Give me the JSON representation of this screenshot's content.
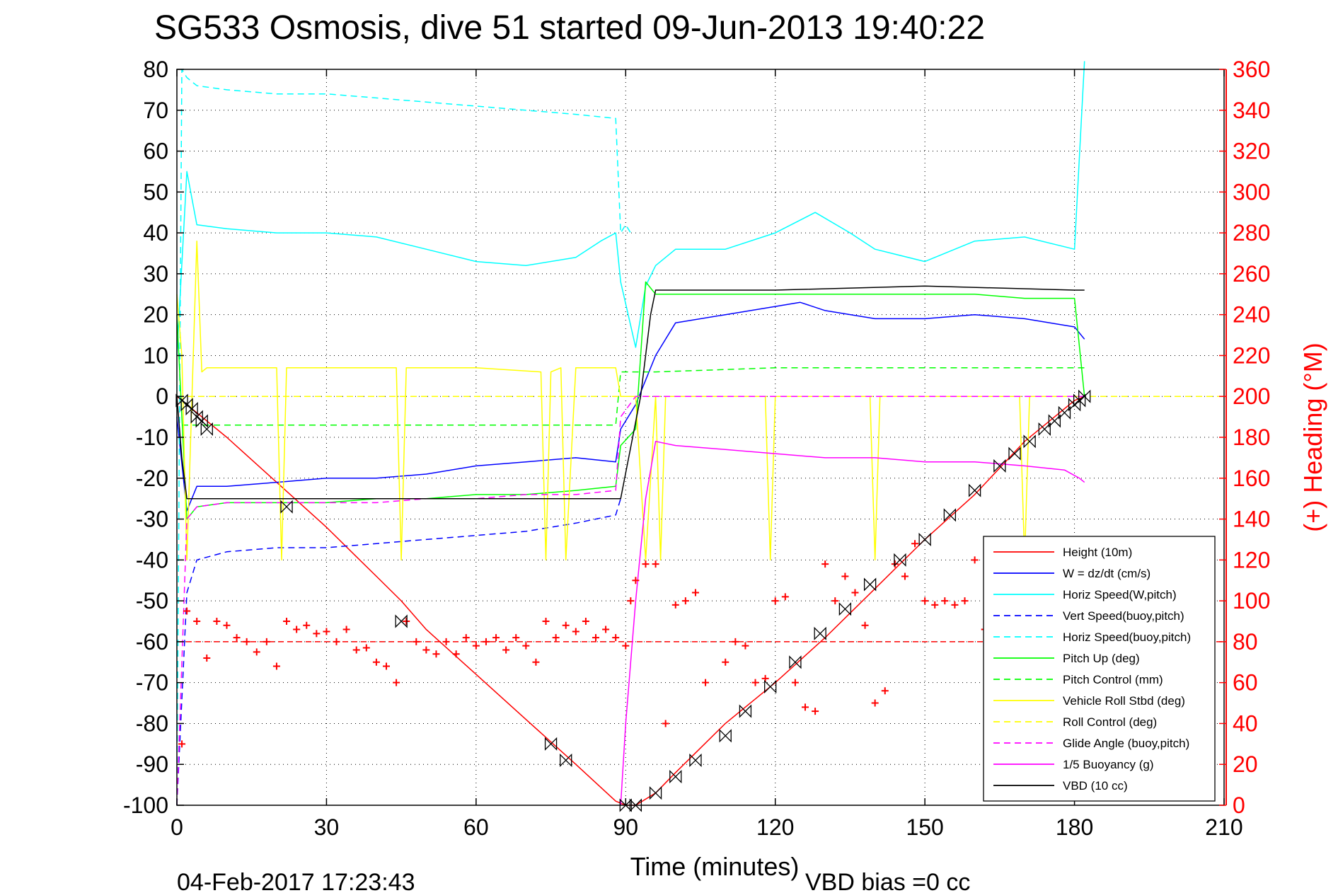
{
  "chart_data": {
    "type": "line",
    "title": "SG533 Osmosis, dive 51 started 09-Jun-2013 19:40:22",
    "xlabel": "Time (minutes)",
    "ylabel_right": "(+) Heading (°M)",
    "xlim": [
      0,
      210
    ],
    "ylim": [
      -100,
      80
    ],
    "ylim_right": [
      0,
      360
    ],
    "x_ticks": [
      "0",
      "30",
      "60",
      "90",
      "120",
      "150",
      "180",
      "210"
    ],
    "y_ticks": [
      "80",
      "70",
      "60",
      "50",
      "40",
      "30",
      "20",
      "10",
      "0",
      "-10",
      "-20",
      "-30",
      "-40",
      "-50",
      "-60",
      "-70",
      "-80",
      "-90",
      "-100"
    ],
    "y_ticks_right": [
      "360",
      "340",
      "320",
      "300",
      "280",
      "260",
      "240",
      "220",
      "200",
      "180",
      "160",
      "140",
      "120",
      "100",
      "80",
      "60",
      "40",
      "20",
      "0"
    ],
    "grid": true,
    "legend_position": "lower-right",
    "footer_date": "04-Feb-2017 17:23:43",
    "footer_bias": "VBD bias =0 cc",
    "series": [
      {
        "name": "Height (10m)",
        "color": "#ff0000",
        "style": "solid",
        "x": [
          0,
          4,
          10,
          20,
          30,
          40,
          45,
          50,
          60,
          70,
          80,
          88,
          90,
          92,
          96,
          100,
          110,
          120,
          130,
          140,
          150,
          160,
          170,
          175,
          180,
          182
        ],
        "y": [
          0,
          -4,
          -10,
          -21,
          -32,
          -44,
          -50,
          -57,
          -68,
          -79,
          -90,
          -99,
          -100,
          -100,
          -97,
          -92,
          -80,
          -70,
          -59,
          -47,
          -35,
          -24,
          -11,
          -6,
          -1,
          0
        ]
      },
      {
        "name": "W = dz/dt (cm/s)",
        "color": "#0000ff",
        "style": "solid",
        "x": [
          0,
          2,
          4,
          10,
          20,
          30,
          40,
          50,
          60,
          70,
          80,
          88,
          89,
          92,
          96,
          100,
          110,
          120,
          125,
          130,
          140,
          150,
          160,
          170,
          180,
          182
        ],
        "y": [
          -5,
          -28,
          -22,
          -22,
          -21,
          -20,
          -20,
          -19,
          -17,
          -16,
          -15,
          -16,
          -8,
          -2,
          10,
          18,
          20,
          22,
          23,
          21,
          19,
          19,
          20,
          19,
          17,
          14
        ]
      },
      {
        "name": "Horiz Speed(W,pitch)",
        "color": "#00ffff",
        "style": "solid",
        "x": [
          0,
          2,
          4,
          10,
          20,
          30,
          40,
          50,
          60,
          70,
          80,
          85,
          88,
          89,
          92,
          94,
          96,
          100,
          110,
          120,
          128,
          135,
          140,
          150,
          160,
          170,
          180,
          182
        ],
        "y": [
          10,
          55,
          42,
          41,
          40,
          40,
          39,
          36,
          33,
          32,
          34,
          38,
          40,
          28,
          12,
          27,
          32,
          36,
          36,
          40,
          45,
          40,
          36,
          33,
          38,
          39,
          36,
          82
        ]
      },
      {
        "name": "Vert Speed(buoy,pitch)",
        "color": "#0000ff",
        "style": "dashed",
        "x": [
          0,
          2,
          4,
          10,
          20,
          30,
          40,
          50,
          60,
          70,
          80,
          88,
          89
        ],
        "y": [
          -100,
          -48,
          -40,
          -38,
          -37,
          -37,
          -36,
          -35,
          -34,
          -33,
          -31,
          -29,
          -25
        ]
      },
      {
        "name": "Horiz Speed(buoy,pitch)",
        "color": "#00ffff",
        "style": "dashed",
        "x": [
          0,
          1,
          2,
          4,
          10,
          20,
          30,
          40,
          50,
          60,
          70,
          80,
          88,
          89,
          90,
          91
        ],
        "y": [
          -100,
          80,
          78,
          76,
          75,
          74,
          74,
          73,
          72,
          71,
          70,
          69,
          68,
          40,
          42,
          40
        ]
      },
      {
        "name": "Pitch Up (deg)",
        "color": "#00ff00",
        "style": "solid",
        "x": [
          0,
          2,
          4,
          10,
          20,
          30,
          40,
          50,
          60,
          70,
          80,
          88,
          89,
          92,
          94,
          96,
          100,
          110,
          120,
          130,
          140,
          150,
          160,
          170,
          180,
          182
        ],
        "y": [
          20,
          -30,
          -27,
          -26,
          -26,
          -26,
          -25,
          -25,
          -24,
          -24,
          -23,
          -22,
          -12,
          -8,
          28,
          25,
          25,
          25,
          25,
          25,
          25,
          25,
          25,
          24,
          24,
          0
        ]
      },
      {
        "name": "Pitch Control (mm)",
        "color": "#00ff00",
        "style": "dashed",
        "x": [
          1,
          4,
          20,
          40,
          60,
          80,
          88,
          89,
          94,
          96,
          120,
          150,
          180,
          182
        ],
        "y": [
          -7,
          -7,
          -7,
          -7,
          -7,
          -7,
          -7,
          6,
          6,
          6,
          7,
          7,
          7,
          7
        ]
      },
      {
        "name": "Vehicle Roll Stbd (deg)",
        "color": "#ffff00",
        "style": "solid",
        "x": [
          0,
          1,
          2,
          4,
          5,
          6,
          10,
          20,
          21,
          22,
          30,
          40,
          44,
          45,
          46,
          60,
          73,
          74,
          75,
          77,
          78,
          80,
          88,
          89,
          92,
          94,
          96,
          97,
          98,
          100,
          110,
          118,
          119,
          120,
          130,
          139,
          140,
          141,
          150,
          160,
          169,
          170,
          171,
          180,
          182
        ],
        "y": [
          25,
          10,
          -40,
          38,
          6,
          7,
          7,
          7,
          -40,
          7,
          7,
          7,
          7,
          -40,
          7,
          7,
          6,
          -40,
          6,
          7,
          -40,
          7,
          7,
          0,
          0,
          -40,
          0,
          -40,
          0,
          0,
          0,
          0,
          -40,
          0,
          0,
          0,
          -40,
          0,
          0,
          0,
          0,
          -40,
          0,
          0,
          0
        ]
      },
      {
        "name": "Roll Control (deg)",
        "color": "#ffff00",
        "style": "dashed",
        "x": [
          0,
          210
        ],
        "y": [
          0,
          0
        ]
      },
      {
        "name": "Glide Angle (buoy,pitch)",
        "color": "#ff00ff",
        "style": "dashed",
        "x": [
          0,
          2,
          4,
          10,
          20,
          30,
          40,
          50,
          60,
          70,
          80,
          88,
          89,
          92,
          96,
          120,
          150,
          180,
          182
        ],
        "y": [
          -100,
          -30,
          -27,
          -26,
          -26,
          -26,
          -26,
          -25,
          -25,
          -24,
          -24,
          -23,
          -5,
          0,
          0,
          0,
          0,
          0,
          0
        ]
      },
      {
        "name": "1/5 Buoyancy (g)",
        "color": "#ff00ff",
        "style": "solid",
        "x": [
          89,
          90,
          92,
          94,
          96,
          100,
          110,
          120,
          130,
          140,
          150,
          160,
          170,
          178,
          181,
          182
        ],
        "y": [
          -100,
          -80,
          -50,
          -25,
          -11,
          -12,
          -13,
          -14,
          -15,
          -15,
          -16,
          -16,
          -17,
          -18,
          -20,
          -21
        ]
      },
      {
        "name": "VBD (10 cc)",
        "color": "#000000",
        "style": "solid",
        "x": [
          0,
          1,
          2,
          4,
          20,
          40,
          60,
          80,
          87,
          89,
          93,
          95,
          96,
          100,
          120,
          150,
          180,
          182
        ],
        "y": [
          0,
          -15,
          -25,
          -25,
          -25,
          -25,
          -25,
          -25,
          -25,
          -25,
          0,
          20,
          26,
          26,
          26,
          27,
          26,
          26
        ]
      },
      {
        "name": "Heading",
        "color": "#ff0000",
        "style": "markers",
        "axis": "right",
        "x": [
          1,
          2,
          4,
          6,
          8,
          10,
          12,
          14,
          16,
          18,
          20,
          22,
          24,
          26,
          28,
          30,
          32,
          34,
          36,
          38,
          40,
          42,
          44,
          46,
          48,
          50,
          52,
          54,
          56,
          58,
          60,
          62,
          64,
          66,
          68,
          70,
          72,
          74,
          76,
          78,
          80,
          82,
          84,
          86,
          88,
          90,
          91,
          92,
          94,
          96,
          98,
          100,
          102,
          104,
          106,
          110,
          112,
          114,
          116,
          118,
          120,
          122,
          124,
          126,
          128,
          130,
          132,
          134,
          136,
          138,
          140,
          142,
          144,
          146,
          148,
          150,
          152,
          154,
          156,
          158,
          160,
          162,
          164,
          166,
          168,
          170,
          172,
          174,
          176,
          178,
          180,
          182
        ],
        "y": [
          30,
          95,
          90,
          72,
          90,
          88,
          82,
          80,
          75,
          80,
          68,
          90,
          86,
          88,
          84,
          85,
          80,
          86,
          76,
          77,
          70,
          68,
          60,
          90,
          80,
          76,
          74,
          80,
          74,
          82,
          78,
          80,
          82,
          76,
          82,
          78,
          70,
          90,
          82,
          88,
          85,
          90,
          82,
          86,
          82,
          78,
          100,
          110,
          118,
          118,
          40,
          98,
          100,
          104,
          60,
          70,
          80,
          78,
          60,
          62,
          100,
          102,
          60,
          48,
          46,
          118,
          100,
          112,
          104,
          88,
          50,
          56,
          118,
          112,
          128,
          100,
          98,
          100,
          98,
          100,
          120,
          86,
          110,
          114,
          100,
          118,
          86,
          106,
          112,
          100,
          106,
          110
        ]
      }
    ],
    "legend_entries": [
      {
        "label": "Height (10m)",
        "color": "#ff0000",
        "style": "solid"
      },
      {
        "label": "W = dz/dt (cm/s)",
        "color": "#0000ff",
        "style": "solid"
      },
      {
        "label": "Horiz Speed(W,pitch)",
        "color": "#00ffff",
        "style": "solid"
      },
      {
        "label": "Vert Speed(buoy,pitch)",
        "color": "#0000ff",
        "style": "dashed"
      },
      {
        "label": "Horiz Speed(buoy,pitch)",
        "color": "#00ffff",
        "style": "dashed"
      },
      {
        "label": "Pitch Up (deg)",
        "color": "#00ff00",
        "style": "solid"
      },
      {
        "label": "Pitch Control (mm)",
        "color": "#00ff00",
        "style": "dashed"
      },
      {
        "label": "Vehicle Roll Stbd (deg)",
        "color": "#ffff00",
        "style": "solid"
      },
      {
        "label": "Roll Control (deg)",
        "color": "#ffff00",
        "style": "dashed"
      },
      {
        "label": "Glide Angle (buoy,pitch)",
        "color": "#ff00ff",
        "style": "dashed"
      },
      {
        "label": "1/5 Buoyancy (g)",
        "color": "#ff00ff",
        "style": "solid"
      },
      {
        "label": "VBD (10 cc)",
        "color": "#000000",
        "style": "solid"
      }
    ],
    "dashed_reference_lines": [
      {
        "color": "#ff0000",
        "axis": "right",
        "y": 80
      }
    ],
    "depth_markers": {
      "x": [
        1,
        2,
        3,
        4,
        5,
        6,
        22,
        45,
        75,
        78,
        90,
        92,
        96,
        100,
        104,
        110,
        114,
        119,
        124,
        129,
        134,
        139,
        145,
        150,
        155,
        160,
        165,
        168,
        171,
        174,
        176,
        178,
        180,
        181,
        182
      ],
      "y": [
        -1,
        -2,
        -3,
        -5,
        -6,
        -8,
        -27,
        -55,
        -85,
        -89,
        -100,
        -100,
        -97,
        -93,
        -89,
        -83,
        -77,
        -71,
        -65,
        -58,
        -52,
        -46,
        -40,
        -35,
        -29,
        -23,
        -17,
        -14,
        -11,
        -8,
        -6,
        -4,
        -2,
        -1,
        0
      ]
    },
    "colors": {
      "heading_axis": "#ff0000",
      "axes": "#000000",
      "grid": "#000000"
    }
  }
}
